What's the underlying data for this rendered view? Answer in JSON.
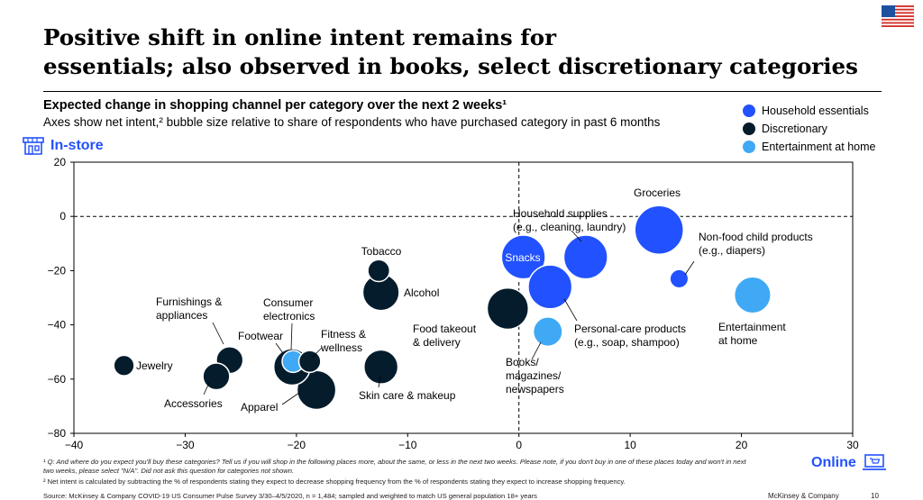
{
  "slide": {
    "title_line1": "Positive shift in online intent remains for",
    "title_line2": "essentials; also observed in books, select discretionary categories",
    "subtitle": "Expected change in shopping channel per category over the next 2 weeks¹",
    "subtitle2": "Axes show net intent,² bubble size relative to share of respondents who have purchased category in past 6 months",
    "instore_label": "In-store",
    "online_label": "Online",
    "footnote1": "¹ Q: And where do you expect you'll buy these categories? Tell us if you will shop in the following places more, about the same, or less in the next two weeks. Please note, if you don't buy in one of these places today and won't in next two weeks, please select \"N/A\". Did not ask this question for categories not shown.",
    "footnote2": "² Net intent is calculated by subtracting the % of respondents stating they expect to decrease shopping frequency from the % of respondents stating they expect to increase shopping frequency.",
    "source": "Source: McKinsey & Company COVID-19 US Consumer Pulse Survey 3/30–4/5/2020, n = 1,484; sampled and weighted to match US general population 18+ years",
    "brand": "McKinsey & Company",
    "page_number": "10"
  },
  "colors": {
    "household": "#2251ff",
    "discretionary": "#051c2c",
    "entertainment": "#3fa9f5",
    "accent": "#2251ff"
  },
  "chart_data": {
    "type": "scatter",
    "xlim": [
      -40,
      30
    ],
    "ylim": [
      -80,
      20
    ],
    "x_ticks": [
      -40,
      -30,
      -20,
      -10,
      0,
      10,
      20,
      30
    ],
    "y_ticks": [
      20,
      0,
      -20,
      -40,
      -60,
      -80
    ],
    "legend": {
      "placement": "top-right",
      "entries": [
        {
          "name": "Household essentials",
          "group": "household"
        },
        {
          "name": "Discretionary",
          "group": "discretionary"
        },
        {
          "name": "Entertainment at home",
          "group": "entertainment"
        }
      ]
    },
    "points": [
      {
        "label": "Groceries",
        "x": 12.6,
        "y": -5,
        "size": 1.0,
        "group": "household"
      },
      {
        "label": "Snacks",
        "x": 0.4,
        "y": -15,
        "size": 0.9,
        "group": "household"
      },
      {
        "label": "Household supplies (e.g., cleaning, laundry)",
        "x": 6,
        "y": -15,
        "size": 0.9,
        "group": "household"
      },
      {
        "label": "Personal-care products (e.g., soap, shampoo)",
        "x": 2.8,
        "y": -26,
        "size": 0.9,
        "group": "household"
      },
      {
        "label": "Non-food child products (e.g., diapers)",
        "x": 14.4,
        "y": -23,
        "size": 0.38,
        "group": "household"
      },
      {
        "label": "Entertainment at home",
        "x": 21,
        "y": -29,
        "size": 0.75,
        "group": "entertainment"
      },
      {
        "label": "Books/ magazines/ newspapers",
        "x": 2.6,
        "y": -42.5,
        "size": 0.6,
        "group": "entertainment"
      },
      {
        "label": "Food takeout & delivery",
        "x": -1,
        "y": -34,
        "size": 0.85,
        "group": "discretionary"
      },
      {
        "label": "Tobacco",
        "x": -12.6,
        "y": -20,
        "size": 0.45,
        "group": "discretionary"
      },
      {
        "label": "Alcohol",
        "x": -12.4,
        "y": -28,
        "size": 0.75,
        "group": "discretionary"
      },
      {
        "label": "Skin care & makeup",
        "x": -12.4,
        "y": -55.5,
        "size": 0.7,
        "group": "discretionary"
      },
      {
        "label": "Furnishings & appliances",
        "x": -26,
        "y": -53,
        "size": 0.55,
        "group": "discretionary"
      },
      {
        "label": "Jewelry",
        "x": -35.5,
        "y": -55,
        "size": 0.42,
        "group": "discretionary"
      },
      {
        "label": "Accessories",
        "x": -27.2,
        "y": -59,
        "size": 0.55,
        "group": "discretionary"
      },
      {
        "label": "Footwear",
        "x": -20.4,
        "y": -55.5,
        "size": 0.75,
        "group": "discretionary"
      },
      {
        "label": "Consumer electronics",
        "x": -20.3,
        "y": -53.5,
        "size": 0.45,
        "group": "entertainment"
      },
      {
        "label": "Fitness & wellness",
        "x": -18.8,
        "y": -53.5,
        "size": 0.45,
        "group": "discretionary"
      },
      {
        "label": "Apparel",
        "x": -18.2,
        "y": -64,
        "size": 0.8,
        "group": "discretionary"
      }
    ]
  }
}
